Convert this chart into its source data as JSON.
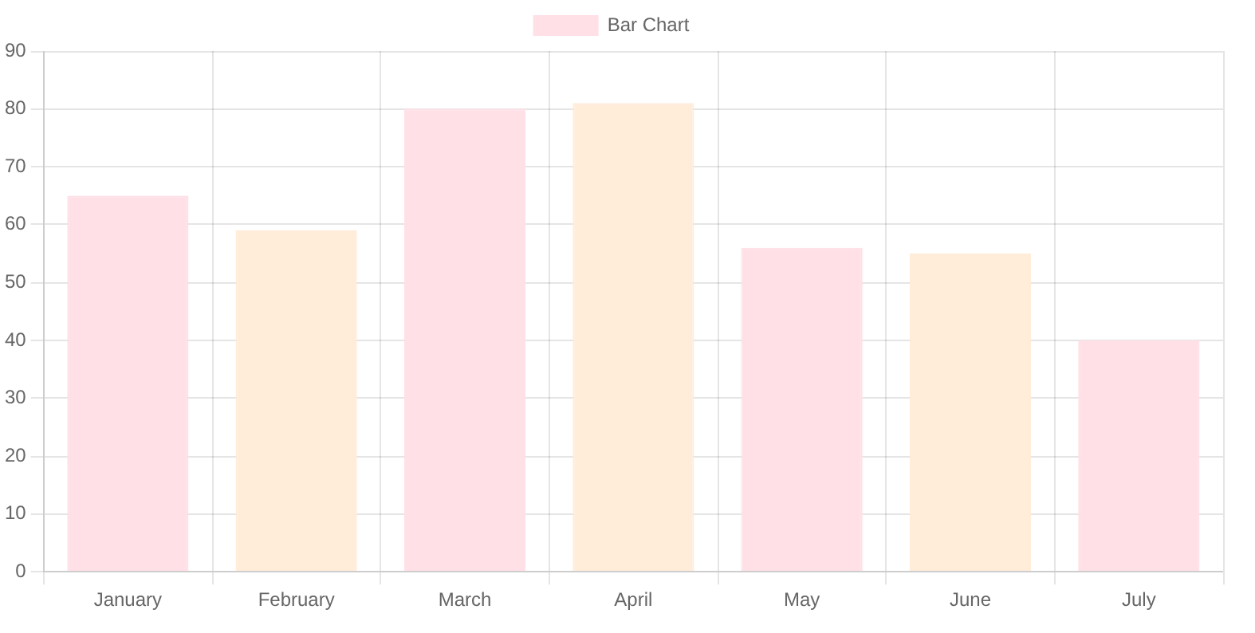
{
  "chart_data": {
    "type": "bar",
    "categories": [
      "January",
      "February",
      "March",
      "April",
      "May",
      "June",
      "July"
    ],
    "series": [
      {
        "name": "Bar Chart",
        "values": [
          65,
          59,
          80,
          81,
          56,
          55,
          40
        ],
        "colors": [
          "#ffe0e6",
          "#ffecd9",
          "#ffe0e6",
          "#ffecd9",
          "#ffe0e6",
          "#ffecd9",
          "#ffe0e6"
        ]
      }
    ],
    "ylim": [
      0,
      90
    ],
    "yticks": [
      0,
      10,
      20,
      30,
      40,
      50,
      60,
      70,
      80,
      90
    ],
    "grid": true,
    "legend": "top"
  }
}
